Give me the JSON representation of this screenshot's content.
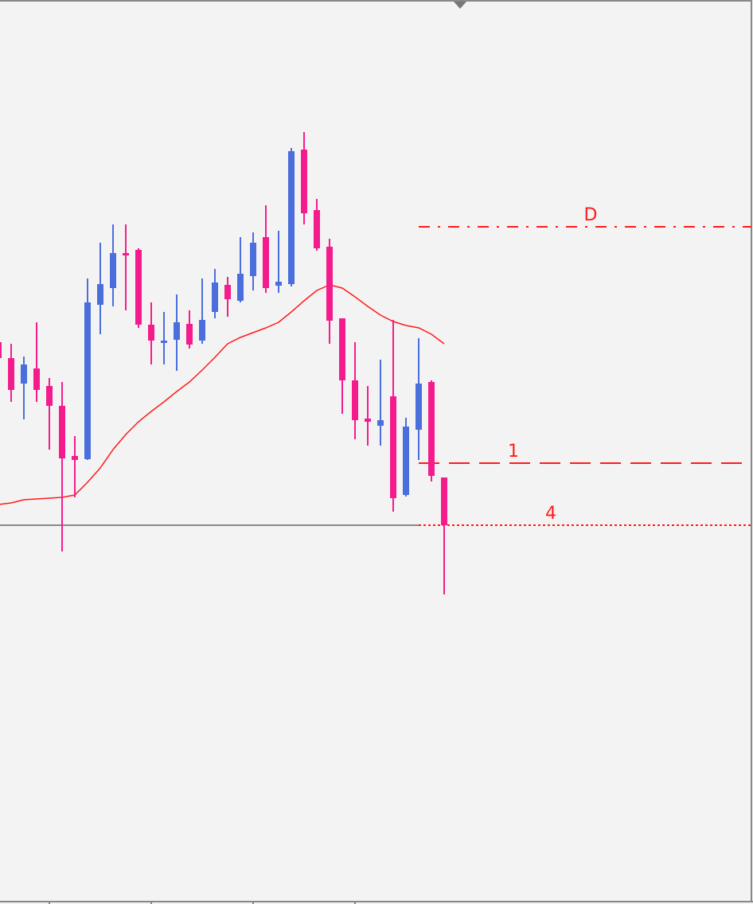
{
  "chart_data": {
    "type": "candlestick",
    "ylim": [
      0,
      1136
    ],
    "up_color": "#4a6fdc",
    "down_color": "#f41c8c",
    "series": [
      {
        "open": [
          706,
          686,
          654,
          673,
          651,
          626,
          563,
          559,
          753,
          774,
          818,
          822,
          728,
          705,
          709,
          729,
          708,
          744,
          778,
          758,
          789,
          838,
          777,
          779,
          948,
          872,
          826,
          736,
          658,
          610,
          601,
          638,
          514,
          596,
          656,
          536
        ],
        "high": [
          726,
          704,
          688,
          731,
          661,
          656,
          588,
          786,
          831,
          854,
          854,
          824,
          756,
          744,
          766,
          746,
          786,
          798,
          788,
          838,
          844,
          878,
          846,
          950,
          970,
          886,
          836,
          736,
          706,
          651,
          684,
          734,
          611,
          711,
          658,
          536
        ],
        "low": [
          611,
          631,
          609,
          631,
          571,
          443,
          511,
          558,
          716,
          751,
          746,
          724,
          678,
          678,
          670,
          698,
          704,
          736,
          738,
          756,
          771,
          768,
          768,
          776,
          854,
          821,
          704,
          616,
          584,
          576,
          576,
          493,
          512,
          558,
          531,
          389
        ],
        "close": [
          686,
          646,
          678,
          646,
          626,
          560,
          558,
          756,
          779,
          818,
          815,
          728,
          708,
          708,
          731,
          703,
          734,
          781,
          760,
          792,
          831,
          774,
          782,
          946,
          868,
          824,
          733,
          658,
          608,
          606,
          608,
          510,
          600,
          654,
          538,
          476
        ]
      }
    ],
    "lines": [
      {
        "color": "#ff1a1a",
        "values": [
          502,
          504,
          508,
          509,
          510,
          511,
          514,
          530,
          548,
          571,
          590,
          606,
          619,
          631,
          644,
          656,
          671,
          687,
          704,
          712,
          718,
          724,
          731,
          744,
          758,
          771,
          778,
          774,
          763,
          751,
          740,
          732,
          727,
          724,
          716,
          704
        ]
      }
    ],
    "levels": [
      {
        "label": "D",
        "value": 851,
        "style": "dashdot"
      },
      {
        "label": "1",
        "value": 554,
        "style": "dashed"
      },
      {
        "label": "4",
        "value": 476,
        "style": "dotted"
      }
    ]
  }
}
